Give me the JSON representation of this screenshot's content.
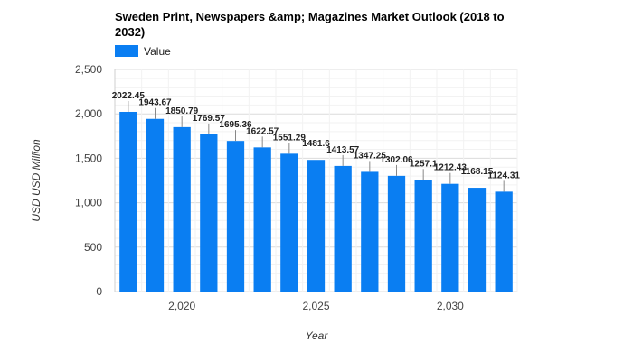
{
  "chart_data": {
    "type": "bar",
    "title_line1": "Sweden Print, Newspapers &amp; Magazines Market Outlook (2018 to",
    "title_line2": "2032)",
    "legend": [
      "Value"
    ],
    "xlabel": "Year",
    "ylabel": "USD USD Million",
    "ylim": [
      0,
      2500
    ],
    "yticks": [
      0,
      500,
      1000,
      1500,
      2000,
      2500
    ],
    "ytick_labels": [
      "0",
      "500",
      "1,000",
      "1,500",
      "2,000",
      "2,500"
    ],
    "xticks": [
      2020,
      2025,
      2030
    ],
    "xtick_labels": [
      "2,020",
      "2,025",
      "2,030"
    ],
    "x": [
      2018,
      2019,
      2020,
      2021,
      2022,
      2023,
      2024,
      2025,
      2026,
      2027,
      2028,
      2029,
      2030,
      2031,
      2032
    ],
    "values": [
      2022.45,
      1943.67,
      1850.79,
      1769.57,
      1695.36,
      1622.57,
      1551.29,
      1481.6,
      1413.57,
      1347.25,
      1302.06,
      1257.1,
      1212.43,
      1168.15,
      1124.31
    ],
    "value_labels": [
      "2022.45",
      "1943.67",
      "1850.79",
      "1769.57",
      "1695.36",
      "1622.57",
      "1551.29",
      "1481.6",
      "1413.57",
      "1347.25",
      "1302.06",
      "1257.1",
      "1212.43",
      "1168.15",
      "1124.31"
    ],
    "colors": {
      "bar": "#0a7ef2",
      "grid": "#e6e6e6"
    }
  }
}
